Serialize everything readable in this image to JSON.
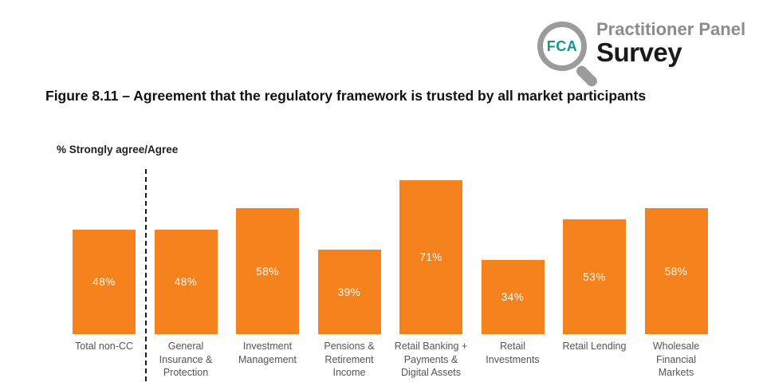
{
  "logo": {
    "fca_text": "FCA",
    "line1": "Practitioner Panel",
    "line2": "Survey"
  },
  "figure_title": "Figure 8.11 – Agreement that the regulatory framework is trusted by all market participants",
  "chart_data": {
    "type": "bar",
    "title": "Figure 8.11 – Agreement that the regulatory framework is trusted by all market participants",
    "ylabel": "% Strongly agree/Agree",
    "xlabel": "",
    "categories": [
      "Total non-CC",
      "General Insurance & Protection",
      "Investment Management",
      "Pensions & Retirement Income",
      "Retail Banking + Payments & Digital Assets",
      "Retail Investments",
      "Retail Lending",
      "Wholesale Financial Markets"
    ],
    "category_lines": [
      [
        "Total non-CC"
      ],
      [
        "General",
        "Insurance &",
        "Protection"
      ],
      [
        "Investment",
        "Management"
      ],
      [
        "Pensions &",
        "Retirement",
        "Income"
      ],
      [
        "Retail Banking +",
        "Payments &",
        "Digital Assets"
      ],
      [
        "Retail",
        "Investments"
      ],
      [
        "Retail Lending"
      ],
      [
        "Wholesale",
        "Financial",
        "Markets"
      ]
    ],
    "values": [
      48,
      48,
      58,
      39,
      71,
      34,
      53,
      58
    ],
    "value_labels": [
      "48%",
      "48%",
      "58%",
      "39%",
      "71%",
      "34%",
      "53%",
      "58%"
    ],
    "ylim": [
      0,
      80
    ],
    "grid": false,
    "legend": "none",
    "separator_after_category": "Total non-CC",
    "bar_color": "#F6821E",
    "value_label_color": "#FFFFFF"
  },
  "colors": {
    "bar_orange": "#F6821E",
    "logo_teal": "#0F9690",
    "logo_gray": "#9B9B9B",
    "title_dark": "#111111",
    "category_gray": "#555555"
  }
}
